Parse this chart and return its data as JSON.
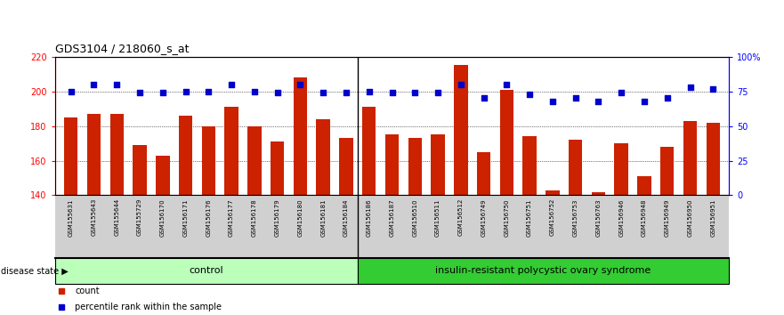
{
  "title": "GDS3104 / 218060_s_at",
  "samples": [
    "GSM155631",
    "GSM155643",
    "GSM155644",
    "GSM155729",
    "GSM156170",
    "GSM156171",
    "GSM156176",
    "GSM156177",
    "GSM156178",
    "GSM156179",
    "GSM156180",
    "GSM156181",
    "GSM156184",
    "GSM156186",
    "GSM156187",
    "GSM156510",
    "GSM156511",
    "GSM156512",
    "GSM156749",
    "GSM156750",
    "GSM156751",
    "GSM156752",
    "GSM156753",
    "GSM156763",
    "GSM156946",
    "GSM156948",
    "GSM156949",
    "GSM156950",
    "GSM156951"
  ],
  "bar_values": [
    185,
    187,
    187,
    169,
    163,
    186,
    180,
    191,
    180,
    171,
    208,
    184,
    173,
    191,
    175,
    173,
    175,
    215,
    165,
    201,
    174,
    143,
    172,
    142,
    170,
    151,
    168,
    183,
    182
  ],
  "percentile_values": [
    75,
    80,
    80,
    74,
    74,
    75,
    75,
    80,
    75,
    74,
    80,
    74,
    74,
    75,
    74,
    74,
    74,
    80,
    70,
    80,
    73,
    68,
    70,
    68,
    74,
    68,
    70,
    78,
    77
  ],
  "ylim_left": [
    140,
    220
  ],
  "ylim_right": [
    0,
    100
  ],
  "yticks_left": [
    140,
    160,
    180,
    200,
    220
  ],
  "yticks_right": [
    0,
    25,
    50,
    75,
    100
  ],
  "ytick_labels_right": [
    "0",
    "25",
    "50",
    "75",
    "100%"
  ],
  "control_count": 13,
  "disease_count": 16,
  "control_label": "control",
  "disease_label": "insulin-resistant polycystic ovary syndrome",
  "bar_color": "#cc2200",
  "dot_color": "#0000cc",
  "bg_color": "#ffffff",
  "control_bg": "#bbffbb",
  "disease_bg": "#33cc33",
  "label_count": "count",
  "label_percentile": "percentile rank within the sample",
  "disease_state_label": "disease state",
  "bar_bottom": 140,
  "xticklabel_bg": "#d0d0d0"
}
